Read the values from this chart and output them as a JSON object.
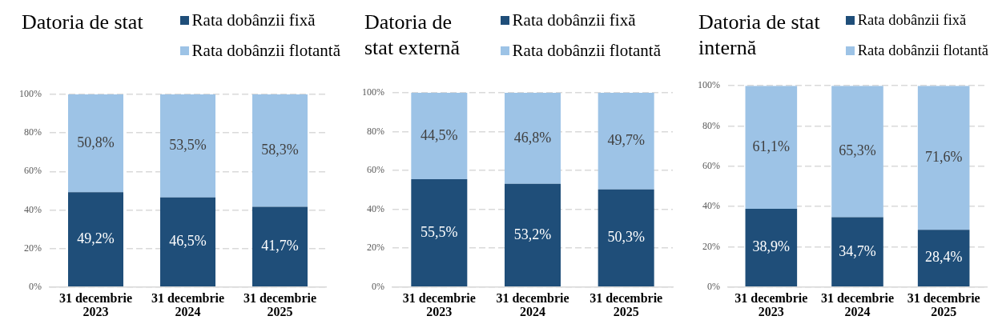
{
  "chart_data": [
    {
      "type": "bar",
      "title": "Datoria de stat",
      "categories": [
        "31 decembrie 2023",
        "31 decembrie 2024",
        "31 decembrie 2025"
      ],
      "stacked": true,
      "series": [
        {
          "name": "Rata dobânzii fixă",
          "color": "#1f4e79",
          "values": [
            49.2,
            46.5,
            41.7
          ],
          "value_labels": [
            "49,2%",
            "46,5%",
            "41,7%"
          ]
        },
        {
          "name": "Rata dobânzii flotantă",
          "color": "#9dc3e6",
          "values": [
            50.8,
            53.5,
            58.3
          ],
          "value_labels": [
            "50,8%",
            "53,5%",
            "58,3%"
          ]
        }
      ],
      "ylim": [
        0,
        100
      ],
      "yticks": [
        {
          "value": 0,
          "label": "0%"
        },
        {
          "value": 20,
          "label": "20%"
        },
        {
          "value": 40,
          "label": "40%"
        },
        {
          "value": 60,
          "label": "60%"
        },
        {
          "value": 80,
          "label": "80%"
        },
        {
          "value": 100,
          "label": "100%"
        }
      ],
      "grid": "y",
      "legend": "top right"
    },
    {
      "type": "bar",
      "title": "Datoria de stat externă",
      "categories": [
        "31 decembrie 2023",
        "31 decembrie 2024",
        "31 decembrie 2025"
      ],
      "stacked": true,
      "series": [
        {
          "name": "Rata dobânzii fixă",
          "color": "#1f4e79",
          "values": [
            55.5,
            53.2,
            50.3
          ],
          "value_labels": [
            "55,5%",
            "53,2%",
            "50,3%"
          ]
        },
        {
          "name": "Rata dobânzii flotantă",
          "color": "#9dc3e6",
          "values": [
            44.5,
            46.8,
            49.7
          ],
          "value_labels": [
            "44,5%",
            "46,8%",
            "49,7%"
          ]
        }
      ],
      "ylim": [
        0,
        100
      ],
      "yticks": [
        {
          "value": 0,
          "label": "0%"
        },
        {
          "value": 20,
          "label": "20%"
        },
        {
          "value": 40,
          "label": "40%"
        },
        {
          "value": 60,
          "label": "60%"
        },
        {
          "value": 80,
          "label": "80%"
        },
        {
          "value": 100,
          "label": "100%"
        }
      ],
      "grid": "y",
      "legend": "top right"
    },
    {
      "type": "bar",
      "title": "Datoria de stat internă",
      "categories": [
        "31 decembrie 2023",
        "31 decembrie 2024",
        "31 decembrie 2025"
      ],
      "stacked": true,
      "series": [
        {
          "name": "Rata dobânzii fixă",
          "color": "#1f4e79",
          "values": [
            38.9,
            34.7,
            28.4
          ],
          "value_labels": [
            "38,9%",
            "34,7%",
            "28,4%"
          ]
        },
        {
          "name": "Rata dobânzii flotantă",
          "color": "#9dc3e6",
          "values": [
            61.1,
            65.3,
            71.6
          ],
          "value_labels": [
            "61,1%",
            "65,3%",
            "71,6%"
          ]
        }
      ],
      "ylim": [
        0,
        100
      ],
      "yticks": [
        {
          "value": 0,
          "label": "0%"
        },
        {
          "value": 20,
          "label": "20%"
        },
        {
          "value": 40,
          "label": "40%"
        },
        {
          "value": 60,
          "label": "60%"
        },
        {
          "value": 80,
          "label": "80%"
        },
        {
          "value": 100,
          "label": "100%"
        }
      ],
      "grid": "y",
      "legend": "top right"
    }
  ]
}
